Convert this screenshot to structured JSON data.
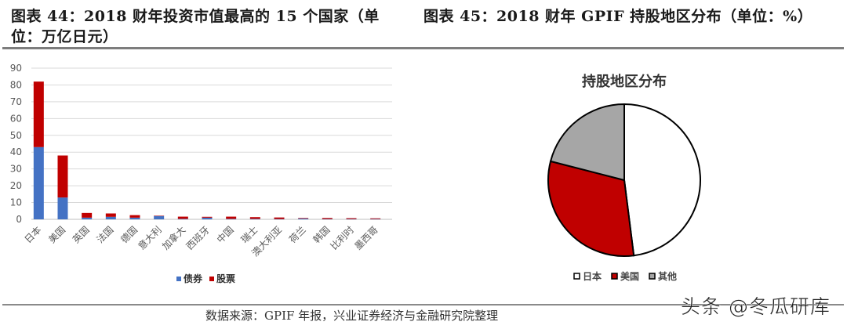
{
  "left_title": "图表 44：2018 财年投资市值最高的 15 个国家（单位：万亿日元）",
  "right_title": "图表 45：2018 财年 GPIF 持股地区分布（单位：%）",
  "source": "数据来源：GPIF 年报，兴业证券经济与金融研究院整理",
  "watermark": "头条 @冬瓜研库",
  "colors": {
    "bonds": "#4472C4",
    "equities": "#C00000",
    "japan": "#FFFFFF",
    "usa": "#C00000",
    "other": "#A6A6A6",
    "grid": "#D9D9D9"
  },
  "chart_data": [
    {
      "type": "bar",
      "stacked": true,
      "title": "2018 财年投资市值最高的 15 个国家（单位：万亿日元）",
      "xlabel": "",
      "ylabel": "",
      "ylim": [
        0,
        90
      ],
      "yticks": [
        0,
        10,
        20,
        30,
        40,
        50,
        60,
        70,
        80,
        90
      ],
      "grid": true,
      "legend_position": "bottom",
      "categories": [
        "日本",
        "美国",
        "英国",
        "法国",
        "德国",
        "意大利",
        "加拿大",
        "西班牙",
        "中国",
        "瑞士",
        "澳大利亚",
        "荷兰",
        "韩国",
        "比利时",
        "墨西哥"
      ],
      "series": [
        {
          "name": "债券",
          "values": [
            43,
            13,
            1.0,
            1.5,
            1.0,
            2.0,
            0.3,
            1.0,
            0.3,
            0.3,
            0.2,
            0.5,
            0.2,
            0.2,
            0.2
          ]
        },
        {
          "name": "股票",
          "values": [
            39,
            25,
            2.8,
            2.0,
            1.5,
            0.2,
            1.3,
            0.5,
            1.3,
            1.0,
            0.9,
            0.3,
            0.6,
            0.5,
            0.4
          ]
        }
      ]
    },
    {
      "type": "pie",
      "title": "持股地区分布",
      "legend_position": "bottom",
      "labels": [
        "日本",
        "美国",
        "其他"
      ],
      "values": [
        48,
        31,
        21
      ],
      "start_angle": "12 o'clock",
      "direction": "clockwise"
    }
  ]
}
